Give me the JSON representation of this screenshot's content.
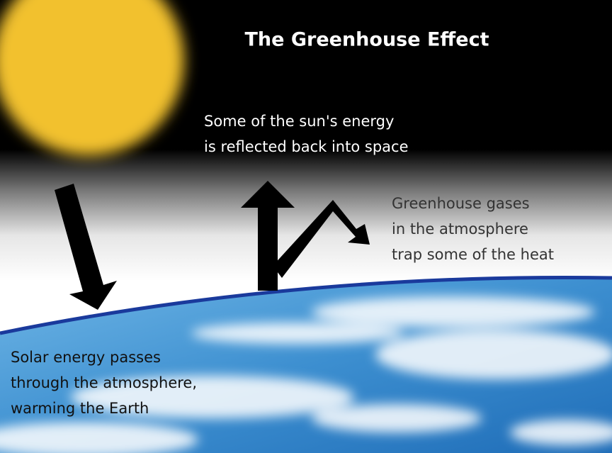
{
  "title": "The Greenhouse Effect",
  "labels": [
    {
      "lines": [
        "Some of the sun's energy",
        "is reflected back into space"
      ]
    },
    {
      "lines": [
        "Greenhouse gases",
        "in the atmosphere",
        "trap some of the heat"
      ]
    },
    {
      "lines": [
        "Solar energy passes",
        "through the atmosphere,",
        "warming the Earth"
      ]
    }
  ]
}
